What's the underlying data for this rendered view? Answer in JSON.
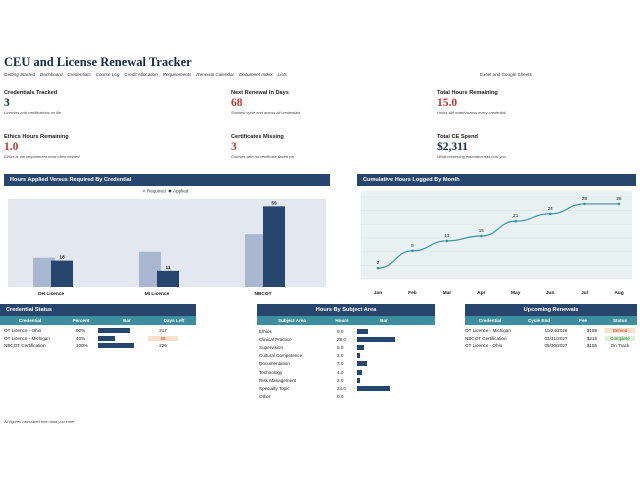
{
  "title": "CEU and License Renewal Tracker",
  "nav": [
    "Getting Started",
    "Dashboard",
    "Credentials",
    "Course Log",
    "Credit Allocation",
    "Requirements",
    "Renewal Calendar",
    "Document Index",
    "Lists"
  ],
  "nav_note": "Excel and Google Sheets",
  "kpis": [
    {
      "label": "Credentials Tracked",
      "value": "3",
      "note": "Licenses and certifications on file.",
      "color": "navy"
    },
    {
      "label": "Next Renewal In Days",
      "value": "68",
      "note": "Soonest cycle end across all credentials.",
      "color": "red"
    },
    {
      "label": "Total Hours Remaining",
      "value": "15.0",
      "note": "Hours still owed across every credential.",
      "color": "red"
    },
    {
      "label": "Ethics Hours Remaining",
      "value": "1.0",
      "note": "Ethics is the requirement most often missed.",
      "color": "red"
    },
    {
      "label": "Certificates Missing",
      "value": "3",
      "note": "Courses with no certificate saved yet.",
      "color": "red"
    },
    {
      "label": "Total CE Spend",
      "value": "$2,311",
      "note": "What continuing education has cost you.",
      "color": "navy"
    }
  ],
  "chart1": {
    "header": "Hours Applied Versus Required By Credential",
    "legend": [
      "Required",
      "Applied"
    ]
  },
  "chart2": {
    "header": "Cumulative Hours Logged By Month"
  },
  "chart_data": [
    {
      "type": "bar",
      "title": "Hours Applied Versus Required By Credential",
      "categories": [
        "OH Licence",
        "MI Licence",
        "NBCOT"
      ],
      "series": [
        {
          "name": "Required",
          "values": [
            20,
            24,
            36
          ]
        },
        {
          "name": "Applied",
          "values": [
            18,
            11,
            55
          ]
        }
      ],
      "ylim": [
        0,
        60
      ],
      "colors": {
        "Required": "#a9b8d0",
        "Applied": "#27466e"
      },
      "legend": "top"
    },
    {
      "type": "line",
      "title": "Cumulative Hours Logged By Month",
      "x": [
        "Jan",
        "Feb",
        "Mar",
        "Apr",
        "May",
        "Jun",
        "Jul",
        "Aug"
      ],
      "series": [
        {
          "values": [
            2,
            9,
            13,
            15,
            21,
            24,
            28,
            28
          ]
        }
      ],
      "ylim": [
        0,
        30
      ],
      "grid": true,
      "color": "#3d8fa0"
    }
  ],
  "credential_status": {
    "header": "Credential Status",
    "columns": [
      "Credential",
      "Percent",
      "Bar",
      "Days Left"
    ],
    "rows": [
      {
        "credential": "OT Licence - Ohio",
        "percent": "90%",
        "fill": 0.9,
        "days": "317",
        "highlight": ""
      },
      {
        "credential": "OT Licence - Michigan",
        "percent": "46%",
        "fill": 0.46,
        "days": "68",
        "highlight": "#fbe1cc"
      },
      {
        "credential": "NBCOT Certification",
        "percent": "100%",
        "fill": 1.0,
        "days": "226",
        "highlight": ""
      }
    ]
  },
  "subject_area": {
    "header": "Hours By Subject Area",
    "columns": [
      "Subject Area",
      "Hours",
      "Bar"
    ],
    "rows": [
      {
        "subject": "Ethics",
        "hours": "8.0",
        "value": 8
      },
      {
        "subject": "Clinical Practice",
        "hours": "28.0",
        "value": 28
      },
      {
        "subject": "Supervision",
        "hours": "5.0",
        "value": 5
      },
      {
        "subject": "Cultural Competence",
        "hours": "2.0",
        "value": 2
      },
      {
        "subject": "Documentation",
        "hours": "7.0",
        "value": 7
      },
      {
        "subject": "Technology",
        "hours": "4.0",
        "value": 4
      },
      {
        "subject": "Risk Management",
        "hours": "2.0",
        "value": 2
      },
      {
        "subject": "Specialty Topic",
        "hours": "24.0",
        "value": 24
      },
      {
        "subject": "Other",
        "hours": "0.0",
        "value": 0
      }
    ]
  },
  "renewals": {
    "header": "Upcoming Renewals",
    "columns": [
      "Credential",
      "Cycle End",
      "Fee",
      "Status"
    ],
    "rows": [
      {
        "credential": "OT Licence - Michigan",
        "cycle_end": "10/24/2026",
        "fee": "$188",
        "status": "Behind",
        "status_bg": "#fbe1cc",
        "status_color": "#c0392b"
      },
      {
        "credential": "NBCOT Certification",
        "cycle_end": "03/31/2027",
        "fee": "$215",
        "status": "Complete",
        "status_bg": "#dff0d8",
        "status_color": "#2e7d32"
      },
      {
        "credential": "OT Licence - Ohio",
        "cycle_end": "06/30/2027",
        "fee": "$155",
        "status": "On Track",
        "status_bg": "",
        "status_color": "#1a1a1a"
      }
    ]
  },
  "footer": "All figures calculated from data you enter."
}
